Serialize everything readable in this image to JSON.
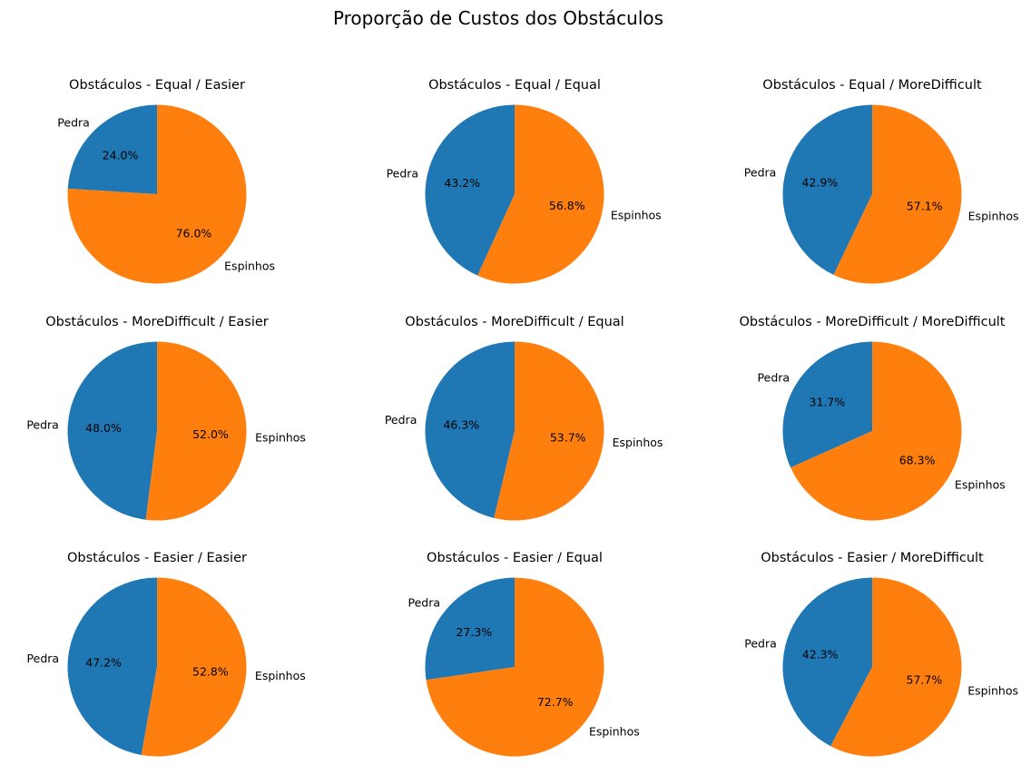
{
  "figure": {
    "suptitle": "Proporção de Custos dos Obstáculos"
  },
  "colors": {
    "Pedra": "#1f77b4",
    "Espinhos": "#ff7f0e"
  },
  "chart_data": [
    {
      "type": "pie",
      "title": "Obstáculos - Equal / Easier",
      "labels": [
        "Pedra",
        "Espinhos"
      ],
      "values": [
        24.0,
        76.0
      ],
      "autopct": [
        "24.0%",
        "76.0%"
      ]
    },
    {
      "type": "pie",
      "title": "Obstáculos - Equal / Equal",
      "labels": [
        "Pedra",
        "Espinhos"
      ],
      "values": [
        43.2,
        56.8
      ],
      "autopct": [
        "43.2%",
        "56.8%"
      ]
    },
    {
      "type": "pie",
      "title": "Obstáculos - Equal / MoreDifficult",
      "labels": [
        "Pedra",
        "Espinhos"
      ],
      "values": [
        42.9,
        57.1
      ],
      "autopct": [
        "42.9%",
        "57.1%"
      ]
    },
    {
      "type": "pie",
      "title": "Obstáculos - MoreDifficult / Easier",
      "labels": [
        "Pedra",
        "Espinhos"
      ],
      "values": [
        48.0,
        52.0
      ],
      "autopct": [
        "48.0%",
        "52.0%"
      ]
    },
    {
      "type": "pie",
      "title": "Obstáculos - MoreDifficult / Equal",
      "labels": [
        "Pedra",
        "Espinhos"
      ],
      "values": [
        46.3,
        53.7
      ],
      "autopct": [
        "46.3%",
        "53.7%"
      ]
    },
    {
      "type": "pie",
      "title": "Obstáculos - MoreDifficult / MoreDifficult",
      "labels": [
        "Pedra",
        "Espinhos"
      ],
      "values": [
        31.7,
        68.3
      ],
      "autopct": [
        "31.7%",
        "68.3%"
      ]
    },
    {
      "type": "pie",
      "title": "Obstáculos - Easier / Easier",
      "labels": [
        "Pedra",
        "Espinhos"
      ],
      "values": [
        47.2,
        52.8
      ],
      "autopct": [
        "47.2%",
        "52.8%"
      ]
    },
    {
      "type": "pie",
      "title": "Obstáculos - Easier / Equal",
      "labels": [
        "Pedra",
        "Espinhos"
      ],
      "values": [
        27.3,
        72.7
      ],
      "autopct": [
        "27.3%",
        "72.7%"
      ]
    },
    {
      "type": "pie",
      "title": "Obstáculos - Easier / MoreDifficult",
      "labels": [
        "Pedra",
        "Espinhos"
      ],
      "values": [
        42.3,
        57.7
      ],
      "autopct": [
        "42.3%",
        "57.7%"
      ]
    }
  ]
}
